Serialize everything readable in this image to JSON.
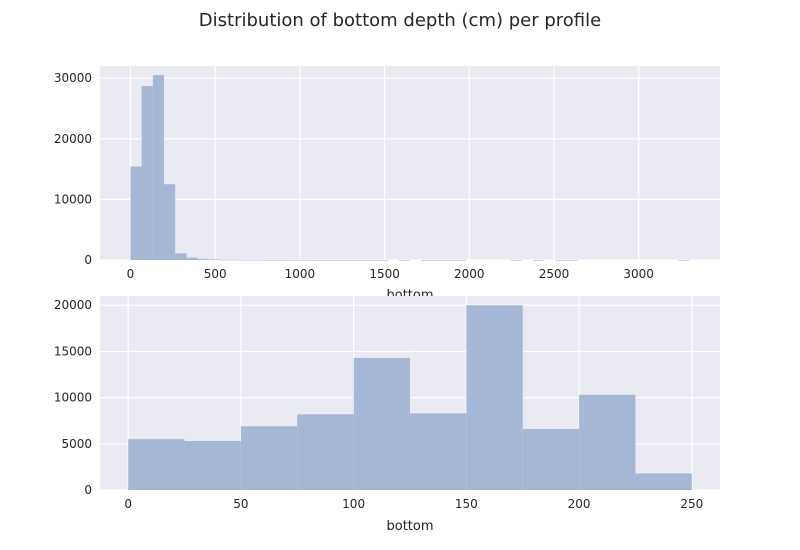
{
  "figure": {
    "title": "Distribution of bottom depth (cm) per profile"
  },
  "colors": {
    "background": "#eaeaf2",
    "bar": "#a7b7d6",
    "grid": "#ffffff",
    "text": "#262626"
  },
  "chart_data": [
    {
      "type": "histogram",
      "xlabel": "bottom",
      "ylabel": "",
      "xlim": [
        -180,
        3480
      ],
      "ylim": [
        0,
        32000
      ],
      "xticks": [
        0,
        500,
        1000,
        1500,
        2000,
        2500,
        3000
      ],
      "yticks": [
        0,
        10000,
        20000,
        30000
      ],
      "grid": true,
      "bins": [
        {
          "x0": 0,
          "x1": 66,
          "count": 15400
        },
        {
          "x0": 66,
          "x1": 132,
          "count": 28700
        },
        {
          "x0": 132,
          "x1": 198,
          "count": 30500
        },
        {
          "x0": 198,
          "x1": 264,
          "count": 12500
        },
        {
          "x0": 264,
          "x1": 330,
          "count": 1100
        },
        {
          "x0": 330,
          "x1": 396,
          "count": 400
        },
        {
          "x0": 396,
          "x1": 462,
          "count": 180
        },
        {
          "x0": 462,
          "x1": 528,
          "count": 90
        },
        {
          "x0": 528,
          "x1": 594,
          "count": 50
        },
        {
          "x0": 594,
          "x1": 660,
          "count": 40
        },
        {
          "x0": 660,
          "x1": 726,
          "count": 30
        },
        {
          "x0": 726,
          "x1": 792,
          "count": 25
        },
        {
          "x0": 792,
          "x1": 858,
          "count": 20
        },
        {
          "x0": 858,
          "x1": 924,
          "count": 20
        },
        {
          "x0": 924,
          "x1": 990,
          "count": 15
        },
        {
          "x0": 990,
          "x1": 1056,
          "count": 15
        },
        {
          "x0": 1056,
          "x1": 1122,
          "count": 12
        },
        {
          "x0": 1122,
          "x1": 1188,
          "count": 12
        },
        {
          "x0": 1188,
          "x1": 1254,
          "count": 10
        },
        {
          "x0": 1254,
          "x1": 1320,
          "count": 10
        },
        {
          "x0": 1320,
          "x1": 1386,
          "count": 8
        },
        {
          "x0": 1386,
          "x1": 1452,
          "count": 8
        },
        {
          "x0": 1452,
          "x1": 1518,
          "count": 6
        },
        {
          "x0": 1584,
          "x1": 1650,
          "count": 8
        },
        {
          "x0": 1716,
          "x1": 1782,
          "count": 6
        },
        {
          "x0": 1782,
          "x1": 1848,
          "count": 6
        },
        {
          "x0": 1848,
          "x1": 1914,
          "count": 6
        },
        {
          "x0": 1914,
          "x1": 1980,
          "count": 6
        },
        {
          "x0": 2244,
          "x1": 2310,
          "count": 5
        },
        {
          "x0": 2376,
          "x1": 2442,
          "count": 5
        },
        {
          "x0": 2508,
          "x1": 2574,
          "count": 5
        },
        {
          "x0": 2574,
          "x1": 2640,
          "count": 5
        },
        {
          "x0": 3234,
          "x1": 3300,
          "count": 5
        }
      ]
    },
    {
      "type": "histogram",
      "xlabel": "bottom",
      "ylabel": "",
      "xlim": [
        -12.5,
        262.5
      ],
      "ylim": [
        0,
        21000
      ],
      "xticks": [
        0,
        50,
        100,
        150,
        200,
        250
      ],
      "yticks": [
        0,
        5000,
        10000,
        15000,
        20000
      ],
      "grid": true,
      "bins": [
        {
          "x0": 0,
          "x1": 25,
          "count": 5500
        },
        {
          "x0": 25,
          "x1": 50,
          "count": 5300
        },
        {
          "x0": 50,
          "x1": 75,
          "count": 6900
        },
        {
          "x0": 75,
          "x1": 100,
          "count": 8200
        },
        {
          "x0": 100,
          "x1": 125,
          "count": 14300
        },
        {
          "x0": 125,
          "x1": 150,
          "count": 8300
        },
        {
          "x0": 150,
          "x1": 175,
          "count": 20000
        },
        {
          "x0": 175,
          "x1": 200,
          "count": 6600
        },
        {
          "x0": 200,
          "x1": 225,
          "count": 10300
        },
        {
          "x0": 225,
          "x1": 250,
          "count": 1800
        }
      ]
    }
  ]
}
